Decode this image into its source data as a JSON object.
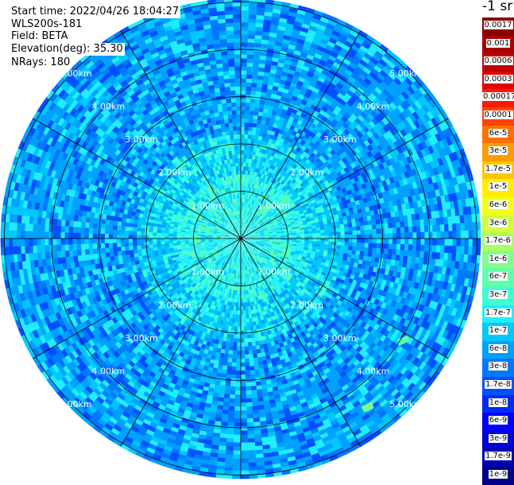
{
  "header": {
    "start_time": "Start time: 2022/04/26 18:04:27",
    "instrument": "WLS200s-181",
    "field": "Field: BETA",
    "elevation": "Elevation(deg): 35.30",
    "nrays": "NRays: 180"
  },
  "colorbar": {
    "unit": "-1 sr",
    "labels": [
      "0.0017",
      "0.001",
      "0.0006",
      "0.0003",
      "0.00017",
      "0.0001",
      "6e-5",
      "3e-5",
      "1.7e-5",
      "1e-5",
      "6e-6",
      "3e-6",
      "1.7e-6",
      "1e-6",
      "6e-7",
      "3e-7",
      "1.7e-7",
      "1e-7",
      "6e-8",
      "3e-8",
      "1.7e-8",
      "1e-8",
      "6e-9",
      "3e-9",
      "1.7e-9",
      "1e-9"
    ],
    "colors": [
      "#8b0000",
      "#a80000",
      "#c40000",
      "#e00000",
      "#ff1a00",
      "#ff4400",
      "#ff7000",
      "#ff9b00",
      "#ffc600",
      "#ffee00",
      "#f2ff1a",
      "#cfff3e",
      "#a8ff66",
      "#80ff8c",
      "#5cffb0",
      "#3cffd4",
      "#20eeff",
      "#00c8ff",
      "#00a0ff",
      "#0078ff",
      "#0050ff",
      "#0028ff",
      "#0000ff",
      "#0000d8",
      "#0000b0",
      "#000088"
    ]
  },
  "chart_data": {
    "type": "heatmap",
    "projection": "polar PPI",
    "range_labels": [
      "1.00km",
      "2.00km",
      "3.00km",
      "4.00km",
      "5.00km"
    ],
    "rings_km": [
      1,
      2,
      3,
      4,
      5
    ],
    "max_range_km": 5.0,
    "spokes_deg": [
      0,
      30,
      60,
      90,
      120,
      150,
      180,
      210,
      240,
      270,
      300,
      330
    ],
    "nrays": 180,
    "field": "BETA",
    "description_zones": [
      {
        "range_km": [
          0,
          1.3
        ],
        "beta_typical": "3e-7"
      },
      {
        "range_km": [
          1.3,
          2.2
        ],
        "beta_typical": "1.7e-7"
      },
      {
        "range_km": [
          2.2,
          5.0
        ],
        "beta_typical": "6e-8"
      }
    ],
    "hotspots": [
      {
        "azimuth_deg": 122,
        "range_km": 4.0,
        "beta": "6e-7"
      },
      {
        "azimuth_deg": 143,
        "range_km": 4.4,
        "beta": "1e-6"
      }
    ]
  }
}
